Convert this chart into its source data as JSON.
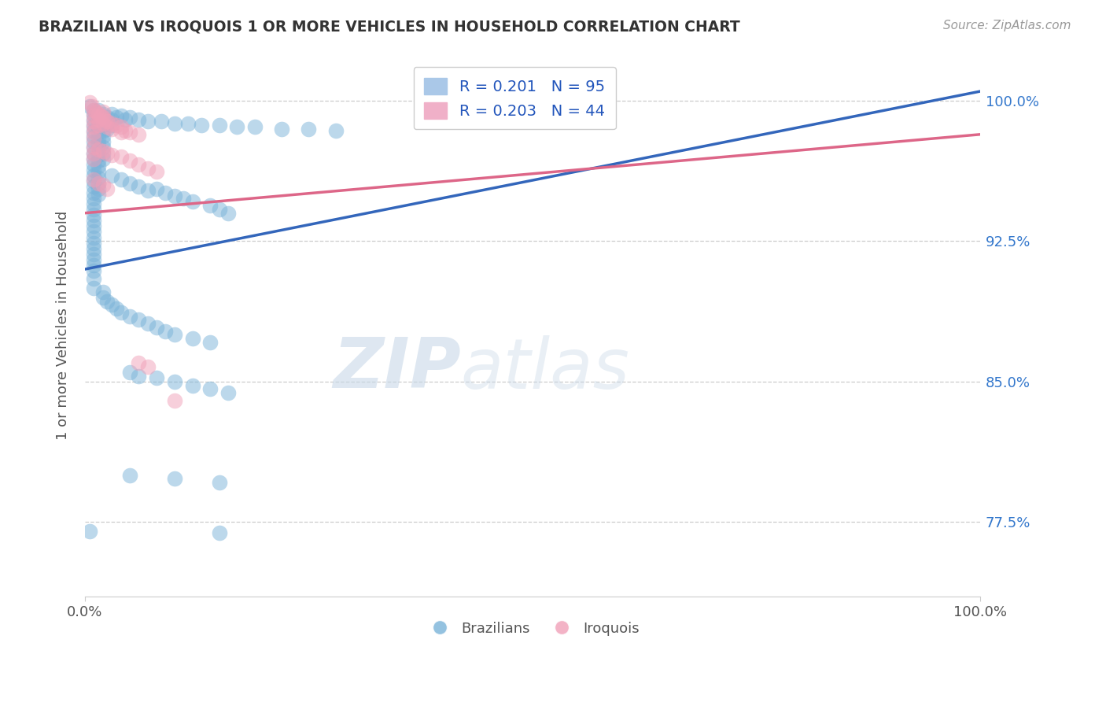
{
  "title": "BRAZILIAN VS IROQUOIS 1 OR MORE VEHICLES IN HOUSEHOLD CORRELATION CHART",
  "source": "Source: ZipAtlas.com",
  "ylabel": "1 or more Vehicles in Household",
  "ytick_labels": [
    "77.5%",
    "85.0%",
    "92.5%",
    "100.0%"
  ],
  "ytick_values": [
    0.775,
    0.85,
    0.925,
    1.0
  ],
  "xlim": [
    0.0,
    1.0
  ],
  "ylim": [
    0.735,
    1.025
  ],
  "blue_color": "#7ab3d9",
  "pink_color": "#f0a0b8",
  "blue_line_color": "#3366bb",
  "pink_line_color": "#dd6688",
  "blue_line": [
    [
      0.0,
      0.91
    ],
    [
      1.0,
      1.005
    ]
  ],
  "pink_line": [
    [
      0.0,
      0.94
    ],
    [
      1.0,
      0.982
    ]
  ],
  "blue_scatter": [
    [
      0.005,
      0.997
    ],
    [
      0.01,
      0.995
    ],
    [
      0.01,
      0.993
    ],
    [
      0.01,
      0.99
    ],
    [
      0.01,
      0.987
    ],
    [
      0.01,
      0.984
    ],
    [
      0.01,
      0.981
    ],
    [
      0.01,
      0.978
    ],
    [
      0.01,
      0.975
    ],
    [
      0.01,
      0.972
    ],
    [
      0.01,
      0.969
    ],
    [
      0.01,
      0.966
    ],
    [
      0.01,
      0.963
    ],
    [
      0.01,
      0.96
    ],
    [
      0.01,
      0.957
    ],
    [
      0.01,
      0.954
    ],
    [
      0.01,
      0.951
    ],
    [
      0.01,
      0.948
    ],
    [
      0.01,
      0.945
    ],
    [
      0.01,
      0.942
    ],
    [
      0.01,
      0.939
    ],
    [
      0.01,
      0.936
    ],
    [
      0.01,
      0.933
    ],
    [
      0.01,
      0.93
    ],
    [
      0.01,
      0.927
    ],
    [
      0.01,
      0.924
    ],
    [
      0.01,
      0.921
    ],
    [
      0.01,
      0.918
    ],
    [
      0.01,
      0.915
    ],
    [
      0.01,
      0.912
    ],
    [
      0.01,
      0.909
    ],
    [
      0.015,
      0.995
    ],
    [
      0.015,
      0.992
    ],
    [
      0.015,
      0.989
    ],
    [
      0.015,
      0.986
    ],
    [
      0.015,
      0.983
    ],
    [
      0.015,
      0.98
    ],
    [
      0.015,
      0.977
    ],
    [
      0.015,
      0.974
    ],
    [
      0.015,
      0.971
    ],
    [
      0.015,
      0.968
    ],
    [
      0.015,
      0.965
    ],
    [
      0.015,
      0.962
    ],
    [
      0.015,
      0.959
    ],
    [
      0.015,
      0.956
    ],
    [
      0.015,
      0.953
    ],
    [
      0.015,
      0.95
    ],
    [
      0.02,
      0.993
    ],
    [
      0.02,
      0.99
    ],
    [
      0.02,
      0.987
    ],
    [
      0.02,
      0.984
    ],
    [
      0.02,
      0.981
    ],
    [
      0.02,
      0.978
    ],
    [
      0.02,
      0.975
    ],
    [
      0.02,
      0.972
    ],
    [
      0.02,
      0.969
    ],
    [
      0.025,
      0.991
    ],
    [
      0.025,
      0.988
    ],
    [
      0.025,
      0.985
    ],
    [
      0.03,
      0.993
    ],
    [
      0.03,
      0.99
    ],
    [
      0.03,
      0.987
    ],
    [
      0.035,
      0.991
    ],
    [
      0.04,
      0.992
    ],
    [
      0.045,
      0.99
    ],
    [
      0.05,
      0.991
    ],
    [
      0.06,
      0.99
    ],
    [
      0.07,
      0.989
    ],
    [
      0.085,
      0.989
    ],
    [
      0.1,
      0.988
    ],
    [
      0.115,
      0.988
    ],
    [
      0.13,
      0.987
    ],
    [
      0.15,
      0.987
    ],
    [
      0.17,
      0.986
    ],
    [
      0.19,
      0.986
    ],
    [
      0.22,
      0.985
    ],
    [
      0.25,
      0.985
    ],
    [
      0.28,
      0.984
    ],
    [
      0.03,
      0.96
    ],
    [
      0.04,
      0.958
    ],
    [
      0.05,
      0.956
    ],
    [
      0.06,
      0.954
    ],
    [
      0.07,
      0.952
    ],
    [
      0.08,
      0.953
    ],
    [
      0.09,
      0.951
    ],
    [
      0.1,
      0.949
    ],
    [
      0.11,
      0.948
    ],
    [
      0.12,
      0.946
    ],
    [
      0.14,
      0.944
    ],
    [
      0.15,
      0.942
    ],
    [
      0.16,
      0.94
    ],
    [
      0.01,
      0.905
    ],
    [
      0.01,
      0.9
    ],
    [
      0.02,
      0.898
    ],
    [
      0.02,
      0.895
    ],
    [
      0.025,
      0.893
    ],
    [
      0.03,
      0.891
    ],
    [
      0.035,
      0.889
    ],
    [
      0.04,
      0.887
    ],
    [
      0.05,
      0.885
    ],
    [
      0.06,
      0.883
    ],
    [
      0.07,
      0.881
    ],
    [
      0.08,
      0.879
    ],
    [
      0.09,
      0.877
    ],
    [
      0.1,
      0.875
    ],
    [
      0.12,
      0.873
    ],
    [
      0.14,
      0.871
    ],
    [
      0.05,
      0.855
    ],
    [
      0.06,
      0.853
    ],
    [
      0.08,
      0.852
    ],
    [
      0.1,
      0.85
    ],
    [
      0.12,
      0.848
    ],
    [
      0.14,
      0.846
    ],
    [
      0.16,
      0.844
    ],
    [
      0.05,
      0.8
    ],
    [
      0.1,
      0.798
    ],
    [
      0.15,
      0.796
    ],
    [
      0.005,
      0.77
    ],
    [
      0.15,
      0.769
    ]
  ],
  "pink_scatter": [
    [
      0.005,
      0.999
    ],
    [
      0.008,
      0.997
    ],
    [
      0.01,
      0.995
    ],
    [
      0.01,
      0.992
    ],
    [
      0.01,
      0.989
    ],
    [
      0.01,
      0.986
    ],
    [
      0.01,
      0.983
    ],
    [
      0.01,
      0.98
    ],
    [
      0.012,
      0.994
    ],
    [
      0.015,
      0.993
    ],
    [
      0.015,
      0.99
    ],
    [
      0.015,
      0.987
    ],
    [
      0.018,
      0.992
    ],
    [
      0.02,
      0.994
    ],
    [
      0.02,
      0.991
    ],
    [
      0.02,
      0.988
    ],
    [
      0.022,
      0.99
    ],
    [
      0.025,
      0.989
    ],
    [
      0.025,
      0.986
    ],
    [
      0.03,
      0.988
    ],
    [
      0.03,
      0.985
    ],
    [
      0.035,
      0.987
    ],
    [
      0.04,
      0.986
    ],
    [
      0.04,
      0.983
    ],
    [
      0.045,
      0.984
    ],
    [
      0.05,
      0.983
    ],
    [
      0.06,
      0.982
    ],
    [
      0.01,
      0.975
    ],
    [
      0.01,
      0.972
    ],
    [
      0.01,
      0.969
    ],
    [
      0.015,
      0.974
    ],
    [
      0.02,
      0.973
    ],
    [
      0.025,
      0.972
    ],
    [
      0.03,
      0.971
    ],
    [
      0.04,
      0.97
    ],
    [
      0.05,
      0.968
    ],
    [
      0.06,
      0.966
    ],
    [
      0.07,
      0.964
    ],
    [
      0.08,
      0.962
    ],
    [
      0.01,
      0.958
    ],
    [
      0.015,
      0.956
    ],
    [
      0.02,
      0.955
    ],
    [
      0.025,
      0.953
    ],
    [
      0.06,
      0.86
    ],
    [
      0.07,
      0.858
    ],
    [
      0.1,
      0.84
    ]
  ]
}
